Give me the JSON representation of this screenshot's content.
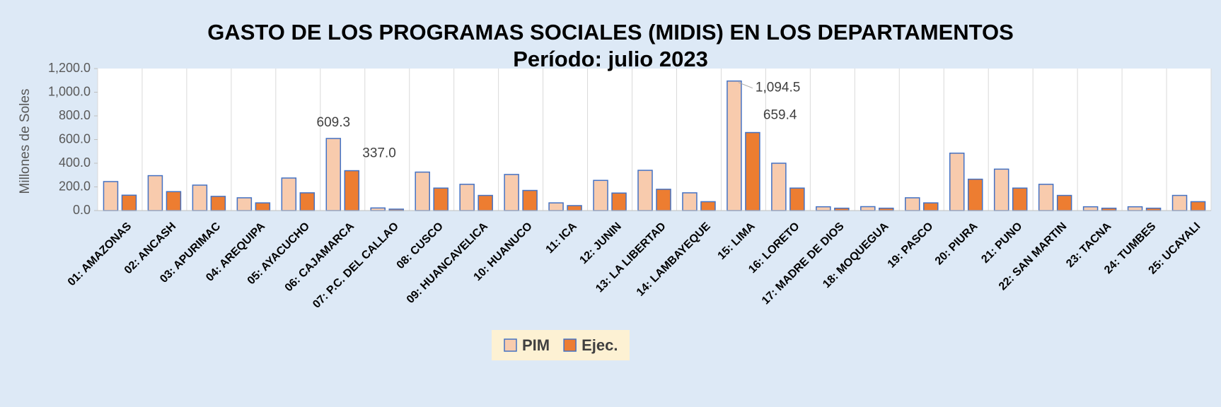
{
  "chart_data": {
    "type": "bar",
    "title": "GASTO DE LOS PROGRAMAS SOCIALES (MIDIS) EN LOS DEPARTAMENTOS",
    "subtitle": "Período: julio 2023",
    "y_label": "Millones de Soles",
    "categories": [
      "01: AMAZONAS",
      "02: ANCASH",
      "03: APURIMAC",
      "04: AREQUIPA",
      "05: AYACUCHO",
      "06: CAJAMARCA",
      "07: P.C. DEL CALLAO",
      "08: CUSCO",
      "09: HUANCAVELICA",
      "10: HUANUCO",
      "11: ICA",
      "12: JUNIN",
      "13: LA LIBERTAD",
      "14: LAMBAYEQUE",
      "15: LIMA",
      "16: LORETO",
      "17: MADRE DE DIOS",
      "18: MOQUEGUA",
      "19: PASCO",
      "20: PIURA",
      "21: PUNO",
      "22: SAN MARTIN",
      "23: TACNA",
      "24: TUMBES",
      "25: UCAYALI"
    ],
    "series": [
      {
        "name": "PIM",
        "color": "#f8cbad",
        "values": [
          245,
          295,
          215,
          108,
          275,
          609.3,
          22,
          325,
          222,
          305,
          65,
          255,
          340,
          150,
          1094.5,
          400,
          32,
          33,
          108,
          485,
          350,
          222,
          32,
          32,
          128
        ],
        "value_labels": [
          null,
          null,
          null,
          null,
          null,
          "609.3",
          null,
          null,
          null,
          null,
          null,
          null,
          null,
          null,
          "1,094.5",
          null,
          null,
          null,
          null,
          null,
          null,
          null,
          null,
          null,
          null
        ]
      },
      {
        "name": "Ejec.",
        "color": "#ed7d31",
        "values": [
          130,
          160,
          120,
          65,
          150,
          337.0,
          12,
          190,
          128,
          170,
          42,
          148,
          180,
          75,
          659.4,
          190,
          20,
          20,
          65,
          265,
          190,
          128,
          20,
          20,
          75
        ],
        "value_labels": [
          null,
          null,
          null,
          null,
          null,
          "337.0",
          null,
          null,
          null,
          null,
          null,
          null,
          null,
          null,
          "659.4",
          null,
          null,
          null,
          null,
          null,
          null,
          null,
          null,
          null,
          null
        ]
      }
    ],
    "ylim": [
      0,
      1200
    ],
    "yticks": [
      {
        "value": 0,
        "label": "0.0"
      },
      {
        "value": 200,
        "label": "200.0"
      },
      {
        "value": 400,
        "label": "400.0"
      },
      {
        "value": 600,
        "label": "600.0"
      },
      {
        "value": 800,
        "label": "800.0"
      },
      {
        "value": 1000,
        "label": "1,000.0"
      },
      {
        "value": 1200,
        "label": "1,200.0"
      }
    ],
    "bar_border": "#4472c4",
    "legend": "bottom"
  }
}
